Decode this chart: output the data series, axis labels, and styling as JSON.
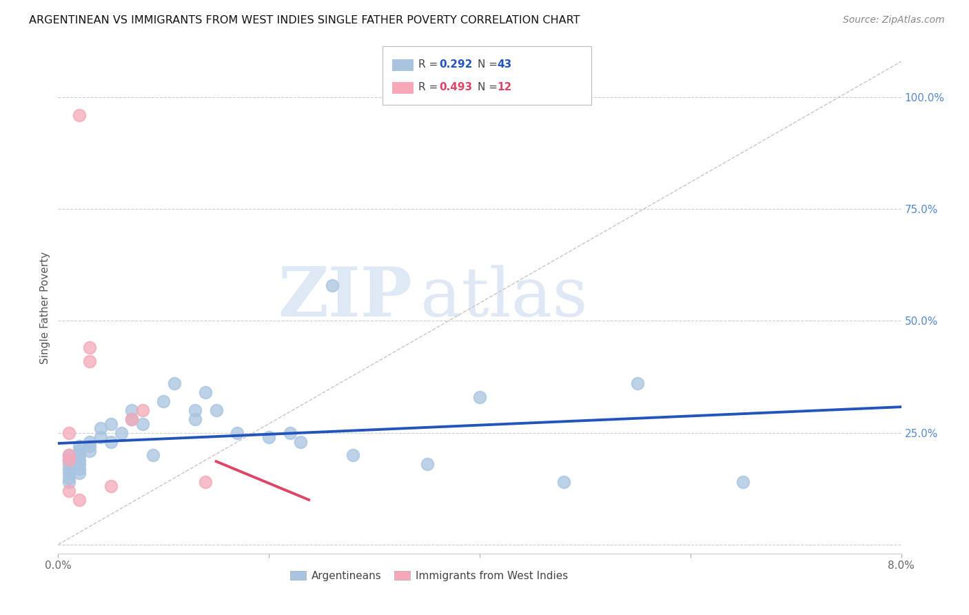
{
  "title": "ARGENTINEAN VS IMMIGRANTS FROM WEST INDIES SINGLE FATHER POVERTY CORRELATION CHART",
  "source": "Source: ZipAtlas.com",
  "ylabel": "Single Father Poverty",
  "xlim": [
    0.0,
    0.08
  ],
  "ylim": [
    -0.02,
    1.08
  ],
  "xtick_positions": [
    0.0,
    0.02,
    0.04,
    0.06,
    0.08
  ],
  "xtick_labels": [
    "0.0%",
    "",
    "",
    "",
    "8.0%"
  ],
  "ytick_positions": [
    0.0,
    0.25,
    0.5,
    0.75,
    1.0
  ],
  "ytick_labels": [
    "",
    "25.0%",
    "50.0%",
    "75.0%",
    "100.0%"
  ],
  "r_blue": 0.292,
  "n_blue": 43,
  "r_pink": 0.493,
  "n_pink": 12,
  "blue_color": "#a8c4e0",
  "pink_color": "#f4a8b8",
  "trend_blue": "#2255bb",
  "trend_pink": "#dd4466",
  "diag_color": "#ccbbbb",
  "legend_r_blue_color": "#2255bb",
  "legend_r_pink_color": "#dd4466",
  "watermark_zip": "ZIP",
  "watermark_atlas": "atlas",
  "argentinean_x": [
    0.001,
    0.001,
    0.001,
    0.001,
    0.001,
    0.001,
    0.001,
    0.002,
    0.002,
    0.002,
    0.002,
    0.002,
    0.002,
    0.002,
    0.003,
    0.003,
    0.003,
    0.004,
    0.004,
    0.005,
    0.005,
    0.006,
    0.007,
    0.007,
    0.008,
    0.009,
    0.01,
    0.011,
    0.013,
    0.013,
    0.014,
    0.015,
    0.017,
    0.02,
    0.022,
    0.023,
    0.026,
    0.028,
    0.035,
    0.04,
    0.048,
    0.055,
    0.065
  ],
  "argentinean_y": [
    0.19,
    0.18,
    0.2,
    0.17,
    0.16,
    0.15,
    0.14,
    0.22,
    0.21,
    0.2,
    0.19,
    0.18,
    0.17,
    0.16,
    0.23,
    0.22,
    0.21,
    0.26,
    0.24,
    0.27,
    0.23,
    0.25,
    0.3,
    0.28,
    0.27,
    0.2,
    0.32,
    0.36,
    0.3,
    0.28,
    0.34,
    0.3,
    0.25,
    0.24,
    0.25,
    0.23,
    0.58,
    0.2,
    0.18,
    0.33,
    0.14,
    0.36,
    0.14
  ],
  "westindies_x": [
    0.001,
    0.001,
    0.001,
    0.001,
    0.002,
    0.002,
    0.003,
    0.003,
    0.005,
    0.007,
    0.008,
    0.014
  ],
  "westindies_y": [
    0.2,
    0.19,
    0.25,
    0.12,
    0.96,
    0.1,
    0.44,
    0.41,
    0.13,
    0.28,
    0.3,
    0.14
  ]
}
